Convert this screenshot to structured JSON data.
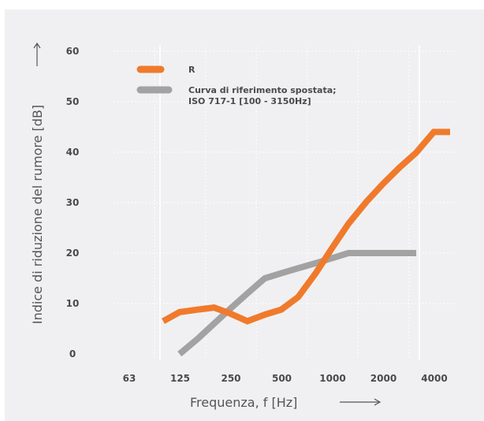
{
  "chart_data": {
    "type": "line",
    "categories": [
      "63",
      "125",
      "250",
      "500",
      "1000",
      "2000",
      "4000"
    ],
    "x": [
      100,
      125,
      160,
      200,
      250,
      315,
      400,
      500,
      630,
      800,
      1000,
      1250,
      1600,
      2000,
      2500,
      3150,
      4000,
      5000
    ],
    "series": [
      {
        "name": "R",
        "color": "#f07a2c",
        "values": [
          6.5,
          8.3,
          8.8,
          9.2,
          8.0,
          6.5,
          7.8,
          8.8,
          11.3,
          16.0,
          21.0,
          25.8,
          30.2,
          33.7,
          36.9,
          39.9,
          44.0,
          44.0
        ]
      },
      {
        "name": "Curva di riferimento spostata;\nISO 717-1 [100 - 3150Hz]",
        "name_lines": [
          "Curva di riferimento spostata;",
          "ISO 717-1 [100 - 3150Hz]"
        ],
        "color": "#a3a2a2",
        "values": [
          null,
          0,
          3,
          6,
          9,
          12,
          15,
          16,
          17,
          18,
          19,
          20,
          20,
          20,
          20,
          20,
          null,
          null
        ]
      }
    ],
    "xlabel": "Frequenza, f [Hz]",
    "ylabel": "Indice di riduzione del rumore [dB]",
    "ylim": [
      0,
      60
    ],
    "yticks": [
      0,
      10,
      20,
      30,
      40,
      50,
      60
    ],
    "grid": true,
    "legend_position": "top-left"
  }
}
